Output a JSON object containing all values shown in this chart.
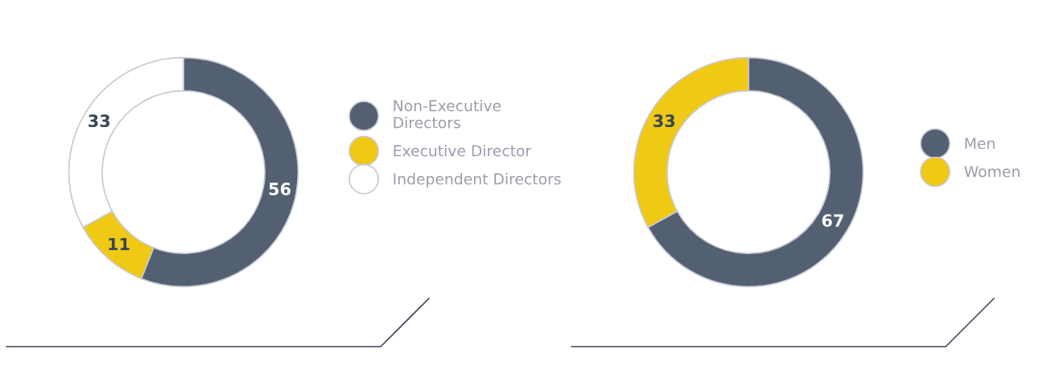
{
  "chart_data": [
    {
      "type": "donut",
      "categories": [
        "Non-Executive\nDirectors",
        "Executive Director",
        "Independent Directors"
      ],
      "values": [
        56,
        11,
        33
      ],
      "colors": [
        "#526072",
        "#f0c914",
        "#ffffff"
      ],
      "data_labels": true,
      "legend": "right"
    },
    {
      "type": "donut",
      "categories": [
        "Men",
        "Women"
      ],
      "values": [
        67,
        33
      ],
      "colors": [
        "#526072",
        "#f0c914"
      ],
      "data_labels": true,
      "legend": "right"
    }
  ]
}
